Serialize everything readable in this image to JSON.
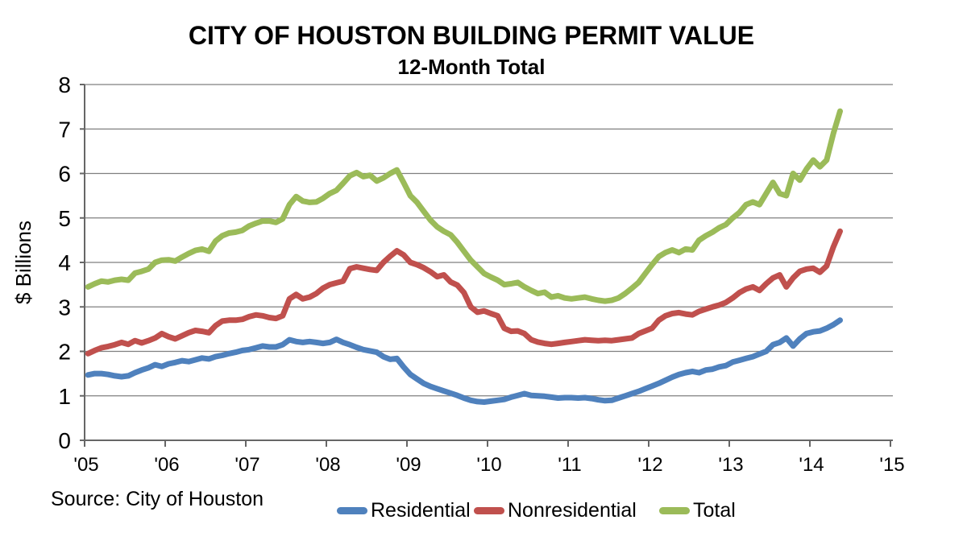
{
  "chart_data": {
    "type": "line",
    "title": "CITY OF HOUSTON BUILDING PERMIT VALUE",
    "subtitle": "12-Month Total",
    "ylabel": "$ Billions",
    "source": "Source: City of Houston",
    "x_start": "2005-01",
    "x_frequency": "monthly",
    "x_tick_labels": [
      "'05",
      "'06",
      "'07",
      "'08",
      "'09",
      "'10",
      "'11",
      "'12",
      "'13",
      "'14",
      "'15"
    ],
    "x_axis_years": [
      2005,
      2006,
      2007,
      2008,
      2009,
      2010,
      2011,
      2012,
      2013,
      2014,
      2015
    ],
    "ylim": [
      0,
      8
    ],
    "yticks": [
      0,
      1,
      2,
      3,
      4,
      5,
      6,
      7,
      8
    ],
    "grid": true,
    "legend_position": "bottom",
    "colors": {
      "background": "#ffffff",
      "grid": "#7f7f7f",
      "axis": "#666666",
      "text": "#000000"
    },
    "series": [
      {
        "name": "Residential",
        "color": "#4F81BD",
        "values": [
          1.47,
          1.5,
          1.5,
          1.48,
          1.45,
          1.43,
          1.45,
          1.52,
          1.58,
          1.63,
          1.7,
          1.66,
          1.72,
          1.75,
          1.79,
          1.77,
          1.81,
          1.85,
          1.83,
          1.88,
          1.91,
          1.95,
          1.98,
          2.02,
          2.04,
          2.08,
          2.12,
          2.1,
          2.1,
          2.15,
          2.26,
          2.22,
          2.2,
          2.22,
          2.2,
          2.18,
          2.2,
          2.27,
          2.2,
          2.15,
          2.09,
          2.04,
          2.01,
          1.98,
          1.88,
          1.82,
          1.84,
          1.65,
          1.48,
          1.38,
          1.28,
          1.21,
          1.16,
          1.11,
          1.06,
          1.01,
          0.95,
          0.9,
          0.87,
          0.86,
          0.88,
          0.9,
          0.92,
          0.97,
          1.01,
          1.05,
          1.01,
          1.0,
          0.99,
          0.97,
          0.95,
          0.96,
          0.96,
          0.95,
          0.96,
          0.94,
          0.91,
          0.89,
          0.9,
          0.95,
          1.0,
          1.05,
          1.1,
          1.16,
          1.22,
          1.28,
          1.35,
          1.42,
          1.48,
          1.52,
          1.55,
          1.52,
          1.58,
          1.6,
          1.65,
          1.68,
          1.76,
          1.8,
          1.84,
          1.88,
          1.94,
          2.0,
          2.15,
          2.2,
          2.3,
          2.12,
          2.28,
          2.4,
          2.44,
          2.46,
          2.52,
          2.6,
          2.7
        ]
      },
      {
        "name": "Nonresidential",
        "color": "#C0504D",
        "values": [
          1.95,
          2.02,
          2.08,
          2.11,
          2.15,
          2.2,
          2.16,
          2.24,
          2.19,
          2.24,
          2.3,
          2.4,
          2.33,
          2.28,
          2.35,
          2.42,
          2.47,
          2.45,
          2.42,
          2.58,
          2.68,
          2.7,
          2.7,
          2.72,
          2.78,
          2.82,
          2.8,
          2.76,
          2.74,
          2.8,
          3.18,
          3.28,
          3.18,
          3.22,
          3.3,
          3.42,
          3.5,
          3.54,
          3.58,
          3.86,
          3.9,
          3.87,
          3.84,
          3.82,
          4.0,
          4.14,
          4.26,
          4.17,
          4.0,
          3.95,
          3.88,
          3.79,
          3.68,
          3.72,
          3.56,
          3.49,
          3.32,
          3.0,
          2.88,
          2.91,
          2.85,
          2.8,
          2.52,
          2.45,
          2.46,
          2.4,
          2.26,
          2.21,
          2.18,
          2.16,
          2.18,
          2.2,
          2.22,
          2.24,
          2.26,
          2.25,
          2.24,
          2.25,
          2.24,
          2.26,
          2.28,
          2.3,
          2.4,
          2.46,
          2.52,
          2.7,
          2.8,
          2.85,
          2.87,
          2.84,
          2.82,
          2.9,
          2.95,
          3.0,
          3.04,
          3.1,
          3.2,
          3.32,
          3.4,
          3.45,
          3.37,
          3.52,
          3.65,
          3.72,
          3.45,
          3.65,
          3.8,
          3.85,
          3.87,
          3.78,
          3.92,
          4.35,
          4.7
        ]
      },
      {
        "name": "Total",
        "color": "#9BBB59",
        "values": [
          3.45,
          3.52,
          3.58,
          3.56,
          3.6,
          3.62,
          3.6,
          3.76,
          3.8,
          3.85,
          4.0,
          4.05,
          4.06,
          4.03,
          4.12,
          4.2,
          4.27,
          4.3,
          4.25,
          4.48,
          4.6,
          4.66,
          4.68,
          4.72,
          4.82,
          4.88,
          4.93,
          4.93,
          4.9,
          4.98,
          5.3,
          5.48,
          5.38,
          5.35,
          5.36,
          5.44,
          5.55,
          5.62,
          5.78,
          5.95,
          6.02,
          5.93,
          5.96,
          5.83,
          5.9,
          6.0,
          6.08,
          5.8,
          5.5,
          5.35,
          5.15,
          4.95,
          4.8,
          4.7,
          4.62,
          4.45,
          4.25,
          4.05,
          3.9,
          3.75,
          3.67,
          3.6,
          3.5,
          3.52,
          3.55,
          3.45,
          3.37,
          3.3,
          3.33,
          3.22,
          3.25,
          3.2,
          3.18,
          3.2,
          3.22,
          3.18,
          3.15,
          3.13,
          3.15,
          3.2,
          3.3,
          3.42,
          3.55,
          3.75,
          3.95,
          4.13,
          4.22,
          4.28,
          4.22,
          4.3,
          4.28,
          4.5,
          4.6,
          4.68,
          4.78,
          4.85,
          5.0,
          5.12,
          5.3,
          5.36,
          5.3,
          5.55,
          5.8,
          5.55,
          5.5,
          6.0,
          5.85,
          6.1,
          6.3,
          6.15,
          6.3,
          6.9,
          7.4
        ]
      }
    ]
  }
}
